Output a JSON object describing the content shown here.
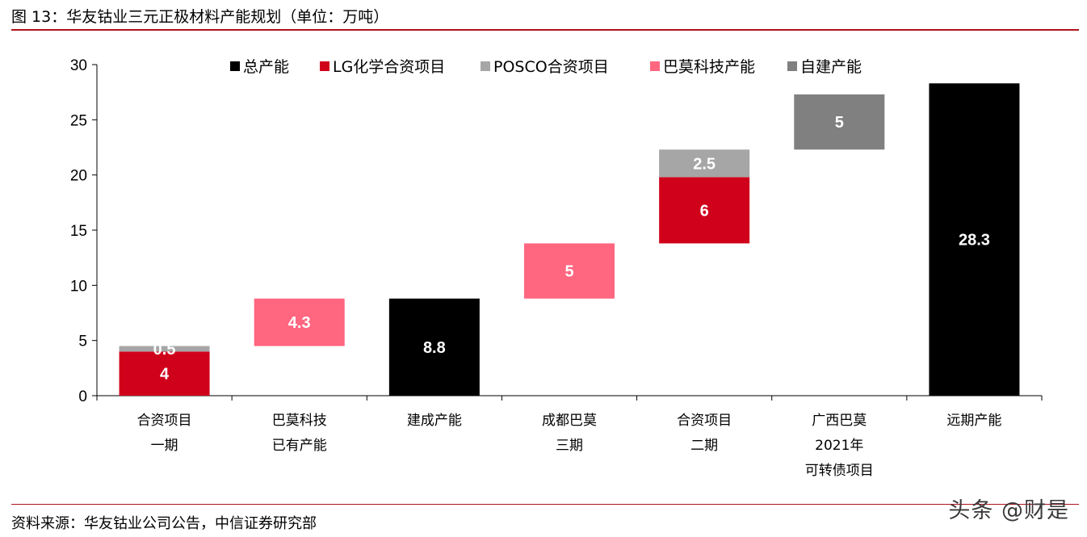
{
  "title": "图 13：华友钴业三元正极材料产能规划（单位：万吨）",
  "source": "资料来源：华友钴业公司公告，中信证券研究部",
  "watermark": "头条 @财是",
  "chart_data": {
    "type": "bar",
    "subtype": "waterfall",
    "title": "",
    "xlabel": "",
    "ylabel": "",
    "ylim": [
      0,
      30
    ],
    "yticks": [
      0,
      5,
      10,
      15,
      20,
      25,
      30
    ],
    "grid": false,
    "legend_position": "top",
    "legend": [
      {
        "name": "总产能",
        "color": "#000000"
      },
      {
        "name": "LG化学合资项目",
        "color": "#d0021b"
      },
      {
        "name": "POSCO合资项目",
        "color": "#a6a6a6"
      },
      {
        "name": "巴莫科技产能",
        "color": "#ff6680"
      },
      {
        "name": "自建产能",
        "color": "#808080"
      }
    ],
    "categories": [
      [
        "合资项目",
        "一期"
      ],
      [
        "巴莫科技",
        "已有产能"
      ],
      [
        "建成产能"
      ],
      [
        "成都巴莫",
        "三期"
      ],
      [
        "合资项目",
        "二期"
      ],
      [
        "广西巴莫",
        "2021年",
        "可转债项目"
      ],
      [
        "远期产能"
      ]
    ],
    "bars": [
      {
        "category": 0,
        "series": "LG化学合资项目",
        "base": 0,
        "value": 4,
        "label": "4"
      },
      {
        "category": 0,
        "series": "POSCO合资项目",
        "base": 4,
        "value": 0.5,
        "label": "0.5"
      },
      {
        "category": 1,
        "series": "巴莫科技产能",
        "base": 4.5,
        "value": 4.3,
        "label": "4.3"
      },
      {
        "category": 2,
        "series": "总产能",
        "base": 0,
        "value": 8.8,
        "label": "8.8"
      },
      {
        "category": 3,
        "series": "巴莫科技产能",
        "base": 8.8,
        "value": 5,
        "label": "5"
      },
      {
        "category": 4,
        "series": "LG化学合资项目",
        "base": 13.8,
        "value": 6,
        "label": "6"
      },
      {
        "category": 4,
        "series": "POSCO合资项目",
        "base": 19.8,
        "value": 2.5,
        "label": "2.5"
      },
      {
        "category": 5,
        "series": "自建产能",
        "base": 22.3,
        "value": 5,
        "label": "5"
      },
      {
        "category": 6,
        "series": "总产能",
        "base": 0,
        "value": 28.3,
        "label": "28.3"
      }
    ]
  }
}
